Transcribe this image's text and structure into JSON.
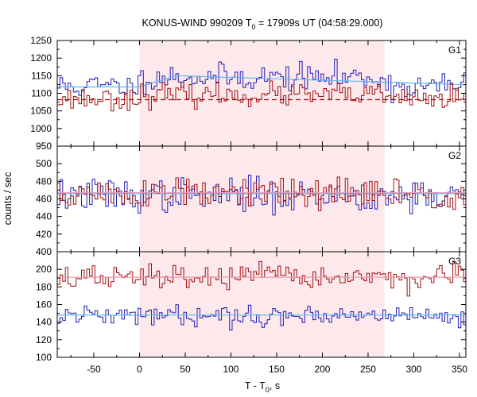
{
  "chart_data": {
    "type": "line",
    "title_prefix": "KONUS-WIND 990209 T",
    "title_sub": "0",
    "title_suffix": " = 17909s UT (04:58:29.000)",
    "xlabel_prefix": "T - T",
    "xlabel_sub": "0",
    "xlabel_suffix": ", s",
    "ylabel": "counts / sec",
    "xlim": [
      -90,
      357
    ],
    "xticks": [
      -50,
      0,
      50,
      100,
      150,
      200,
      250,
      300,
      350
    ],
    "bin_width": 2.944,
    "highlight": {
      "x_start": 0,
      "x_end": 268,
      "color": "#fde8ec"
    },
    "colors": {
      "blue": "#1f1fb4",
      "red": "#a01010",
      "blue_bg": "#5fb7f0",
      "red_bg": "#e89ab0"
    },
    "panels": [
      {
        "name": "G1",
        "ylim": [
          950,
          1250
        ],
        "yticks": [
          950,
          1000,
          1050,
          1100,
          1150,
          1200,
          1250
        ],
        "series": [
          {
            "color": "blue",
            "level": 1120,
            "burst_level": 1145,
            "noise": 19,
            "seed": 11,
            "background": {
              "level": 1118,
              "style": "solid",
              "color": "blue_bg",
              "rise_start": 0,
              "rise_end": 40,
              "peak": 1150
            }
          },
          {
            "color": "red",
            "level": 1085,
            "burst_level": 1095,
            "noise": 16,
            "seed": 23,
            "background": {
              "level": 1082,
              "style": "dashed",
              "color": "red",
              "rise_start": 0,
              "rise_end": 0,
              "peak": 1082
            }
          }
        ]
      },
      {
        "name": "G2",
        "ylim": [
          400,
          520
        ],
        "yticks": [
          400,
          420,
          440,
          460,
          480,
          500
        ],
        "series": [
          {
            "color": "blue",
            "level": 464,
            "burst_level": 464,
            "noise": 9.5,
            "seed": 37,
            "background": {
              "level": 466,
              "style": "solid",
              "color": "blue_bg",
              "rise_start": 0,
              "rise_end": 0,
              "peak": 466
            }
          },
          {
            "color": "red",
            "level": 465,
            "burst_level": 466,
            "noise": 9.5,
            "seed": 51,
            "background": {
              "level": 467,
              "style": "solid",
              "color": "red_bg",
              "rise_start": 0,
              "rise_end": 0,
              "peak": 467
            }
          }
        ]
      },
      {
        "name": "G3",
        "ylim": [
          100,
          220
        ],
        "yticks": [
          100,
          120,
          140,
          160,
          180,
          200
        ],
        "series": [
          {
            "color": "red",
            "level": 190,
            "burst_level": 191,
            "noise": 7,
            "seed": 67,
            "background": {
              "level": 191,
              "style": "solid",
              "color": "red_bg",
              "rise_start": 0,
              "rise_end": 0,
              "peak": 191
            }
          },
          {
            "color": "blue",
            "level": 147,
            "burst_level": 148,
            "noise": 5.5,
            "seed": 79,
            "background": {
              "level": 148,
              "style": "solid",
              "color": "blue_bg",
              "rise_start": 0,
              "rise_end": 0,
              "peak": 148
            }
          }
        ]
      }
    ]
  }
}
